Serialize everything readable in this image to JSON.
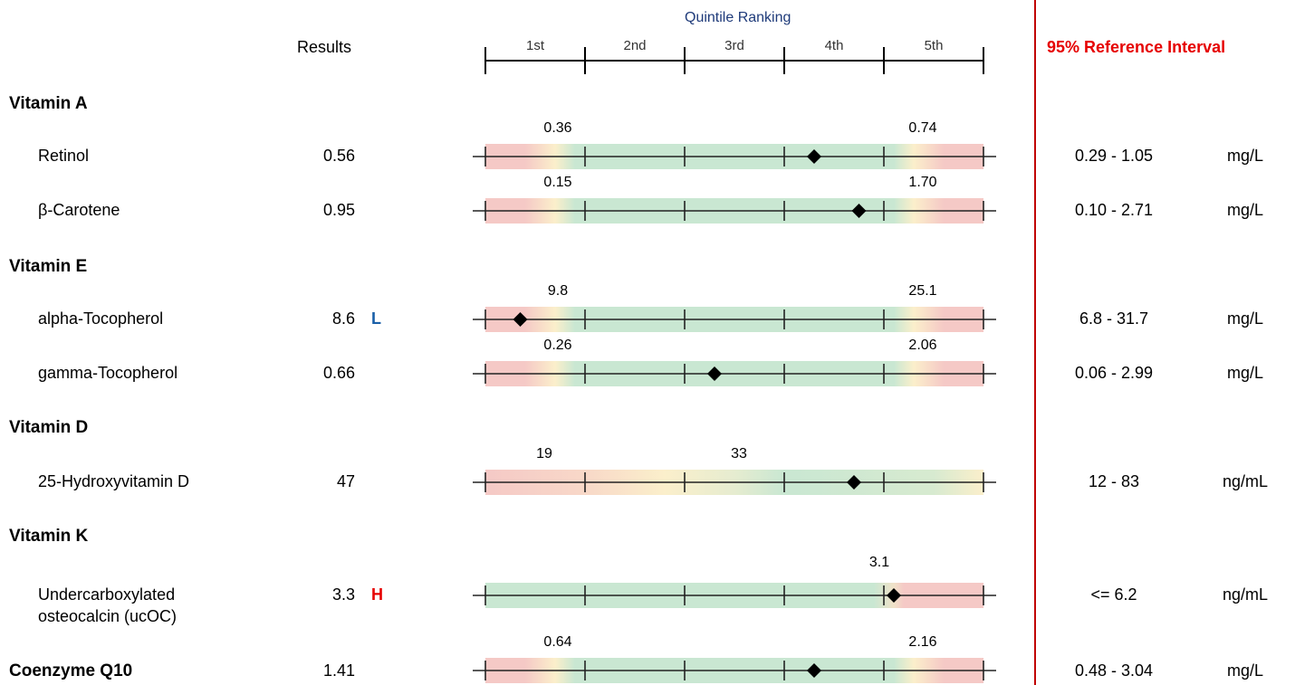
{
  "header": {
    "results_label": "Results",
    "quintile_title": "Quintile Ranking",
    "quintiles": [
      "1st",
      "2nd",
      "3rd",
      "4th",
      "5th"
    ],
    "ref_title": "95% Reference Interval"
  },
  "sections": [
    {
      "title": "Vitamin A"
    },
    {
      "title": "Vitamin E"
    },
    {
      "title": "Vitamin D"
    },
    {
      "title": "Vitamin K"
    }
  ],
  "rows": [
    {
      "name": "Retinol",
      "result": "0.56",
      "flag": "",
      "cut_low": "0.36",
      "cut_high": "0.74",
      "ref": "0.29 - 1.05",
      "unit": "mg/L",
      "quintile_position": 0.66,
      "scale": "standard"
    },
    {
      "name": "β-Carotene",
      "result": "0.95",
      "flag": "",
      "cut_low": "0.15",
      "cut_high": "1.70",
      "ref": "0.10 - 2.71",
      "unit": "mg/L",
      "quintile_position": 0.75,
      "scale": "standard"
    },
    {
      "name": "alpha-Tocopherol",
      "result": "8.6",
      "flag": "L",
      "cut_low": "9.8",
      "cut_high": "25.1",
      "ref": "6.8 - 31.7",
      "unit": "mg/L",
      "quintile_position": 0.07,
      "scale": "standard"
    },
    {
      "name": "gamma-Tocopherol",
      "result": "0.66",
      "flag": "",
      "cut_low": "0.26",
      "cut_high": "2.06",
      "ref": "0.06 - 2.99",
      "unit": "mg/L",
      "quintile_position": 0.46,
      "scale": "standard"
    },
    {
      "name": "25-Hydroxyvitamin D",
      "result": "47",
      "flag": "",
      "cut_low": "19",
      "cut_high": "33",
      "ref": "12 - 83",
      "unit": "ng/mL",
      "quintile_position": 0.74,
      "scale": "vitd"
    },
    {
      "name": "Undercarboxylated",
      "name2": "osteocalcin (ucOC)",
      "result": "3.3",
      "flag": "H",
      "cut_low": "",
      "cut_high": "3.1",
      "ref": "<= 6.2",
      "unit": "ng/mL",
      "quintile_position": 0.82,
      "scale": "vitk"
    },
    {
      "name": "Coenzyme Q10",
      "result": "1.41",
      "flag": "",
      "cut_low": "0.64",
      "cut_high": "2.16",
      "ref": "0.48 - 3.04",
      "unit": "mg/L",
      "quintile_position": 0.66,
      "scale": "standard"
    }
  ],
  "colors": {
    "red_zone": "#f5c9c6",
    "yellow_zone": "#fbefcb",
    "green_zone": "#c9e7d2",
    "accent_red": "#e60000",
    "accent_blue": "#1a5fa8",
    "divider": "#c00000"
  }
}
